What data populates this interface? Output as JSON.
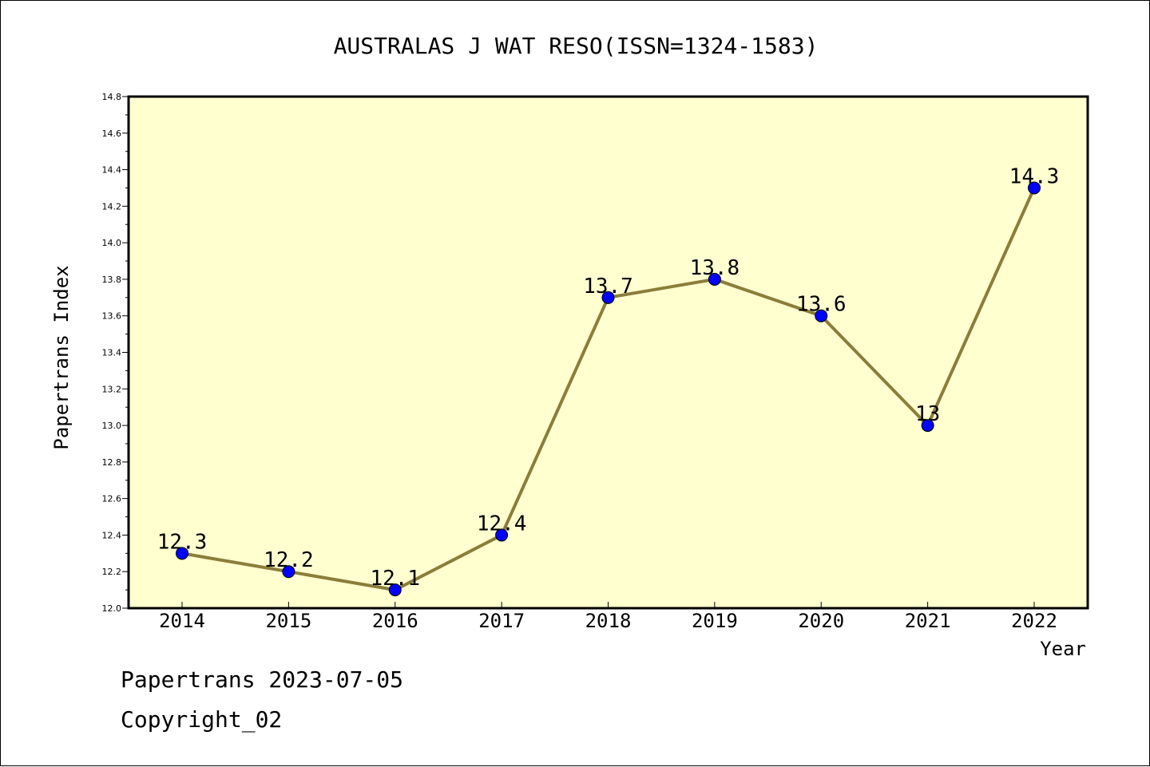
{
  "chart_data": {
    "type": "line",
    "title": "AUSTRALAS J WAT RESO(ISSN=1324-1583)",
    "xlabel": "Year",
    "ylabel": "Papertrans Index",
    "categories": [
      "2014",
      "2015",
      "2016",
      "2017",
      "2018",
      "2019",
      "2020",
      "2021",
      "2022"
    ],
    "series": [
      {
        "values": [
          12.3,
          12.2,
          12.1,
          12.4,
          13.7,
          13.8,
          13.6,
          13.0,
          14.3
        ],
        "data_labels": [
          "12.3",
          "12.2",
          "12.1",
          "12.4",
          "13.7",
          "13.8",
          "13.6",
          "13",
          "14.3"
        ]
      }
    ],
    "ylim": [
      12.0,
      14.8
    ],
    "yticks": [
      "12.0",
      "12.2",
      "12.4",
      "12.6",
      "12.8",
      "13.0",
      "13.2",
      "13.4",
      "13.6",
      "13.8",
      "14.0",
      "14.2",
      "14.4",
      "14.6",
      "14.8"
    ],
    "grid": false,
    "legend": "none",
    "colors": {
      "plot_background": "#ffffd0",
      "line": "#8b7d3a",
      "marker": "#0000ff"
    }
  },
  "footer": {
    "source": "Papertrans 2023-07-05",
    "copyright": "Copyright_02"
  }
}
